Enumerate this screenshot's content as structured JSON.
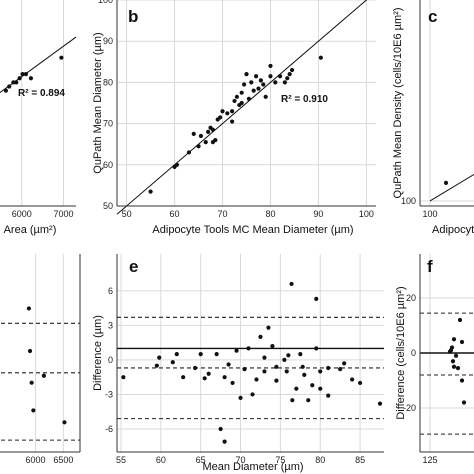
{
  "chart_data": [
    {
      "id": "a",
      "type": "scatter",
      "xlabel": "Area (µm²)",
      "ylabel": "",
      "xlim": [
        5000,
        7300
      ],
      "ylim": [
        50,
        100
      ],
      "xticks": [
        6000,
        7000
      ],
      "yticks": [],
      "annotation": "R² = 0.894",
      "points": [
        [
          5620,
          78
        ],
        [
          5700,
          79
        ],
        [
          5800,
          80
        ],
        [
          5870,
          80
        ],
        [
          5950,
          81
        ],
        [
          6020,
          82
        ],
        [
          6100,
          82
        ],
        [
          6220,
          81
        ],
        [
          6950,
          86
        ]
      ],
      "line": [
        [
          5000,
          74
        ],
        [
          7300,
          91
        ]
      ]
    },
    {
      "id": "b",
      "type": "scatter",
      "panel_label": "b",
      "xlabel": "Adipocyte Tools MC Mean Diameter (µm)",
      "ylabel": "QuPath Mean Diameter (µm)",
      "xlim": [
        48,
        102
      ],
      "ylim": [
        50,
        100
      ],
      "xticks": [
        50,
        60,
        70,
        80,
        90,
        100
      ],
      "yticks": [
        50,
        60,
        70,
        80,
        90,
        100
      ],
      "annotation": "R² = 0.910",
      "points": [
        [
          55,
          53.5
        ],
        [
          60,
          59.5
        ],
        [
          60.5,
          60
        ],
        [
          63,
          63
        ],
        [
          64,
          67.5
        ],
        [
          65,
          64.5
        ],
        [
          65.5,
          67
        ],
        [
          66.5,
          65.5
        ],
        [
          67,
          68
        ],
        [
          67.5,
          69
        ],
        [
          68,
          65.5
        ],
        [
          68,
          68.5
        ],
        [
          68.5,
          66
        ],
        [
          69,
          71
        ],
        [
          69.5,
          71.5
        ],
        [
          70,
          73
        ],
        [
          71,
          72.5
        ],
        [
          72,
          70.5
        ],
        [
          72,
          73
        ],
        [
          72.5,
          75.5
        ],
        [
          73,
          76.5
        ],
        [
          73.5,
          74.5
        ],
        [
          74,
          75
        ],
        [
          74,
          77.5
        ],
        [
          74.5,
          79.5
        ],
        [
          75,
          82
        ],
        [
          75.5,
          76
        ],
        [
          76,
          80
        ],
        [
          76.5,
          78
        ],
        [
          77,
          81.5
        ],
        [
          77.5,
          78.5
        ],
        [
          78,
          80.5
        ],
        [
          78.5,
          79.5
        ],
        [
          79,
          76.5
        ],
        [
          80,
          84
        ],
        [
          80,
          81.5
        ],
        [
          81,
          80
        ],
        [
          82,
          81.5
        ],
        [
          83,
          80
        ],
        [
          83.5,
          81
        ],
        [
          84,
          82
        ],
        [
          84.5,
          83
        ],
        [
          90.5,
          86
        ]
      ],
      "line": [
        [
          48,
          48
        ],
        [
          101,
          101
        ]
      ]
    },
    {
      "id": "c",
      "type": "scatter",
      "panel_label": "c",
      "xlabel": "Adipocyt",
      "ylabel": "QuPath Mean Density (cells/10E6 µm²)",
      "xlim": [
        90,
        150
      ],
      "ylim": [
        95,
        300
      ],
      "xticks": [
        100
      ],
      "yticks": [
        100
      ],
      "points": [
        [
          116,
          118
        ]
      ],
      "line": [
        [
          100,
          100
        ],
        [
          150,
          130
        ]
      ]
    },
    {
      "id": "d",
      "type": "scatter",
      "xlabel": "",
      "ylabel": "",
      "xlim": [
        5000,
        6800
      ],
      "ylim": [
        -500,
        500
      ],
      "xticks": [
        6000,
        6500
      ],
      "yticks": [],
      "points": [
        [
          5880,
          225
        ],
        [
          5900,
          10
        ],
        [
          5930,
          -150
        ],
        [
          5960,
          -290
        ],
        [
          6150,
          -115
        ],
        [
          6520,
          -350
        ]
      ],
      "hlines_solid": [],
      "hlines_dashed": [
        150,
        -100,
        -440
      ]
    },
    {
      "id": "e",
      "type": "scatter",
      "panel_label": "e",
      "xlabel": "Mean Diameter (µm)",
      "ylabel": "Difference (µm)",
      "xlim": [
        54.5,
        88
      ],
      "ylim": [
        -8,
        9.2
      ],
      "xticks": [
        55,
        60,
        65,
        70,
        75,
        80,
        85
      ],
      "xtick_labels": [
        "55",
        "60",
        "65",
        "70",
        "75",
        "80",
        "85"
      ],
      "yticks": [
        6,
        3,
        0,
        -3,
        -6
      ],
      "ytick_labels": [
        "6",
        "3",
        "0",
        "-3",
        "-6"
      ],
      "points": [
        [
          55.3,
          -1.5
        ],
        [
          59.5,
          -0.5
        ],
        [
          59.8,
          0.2
        ],
        [
          61.5,
          -0.2
        ],
        [
          62,
          0.5
        ],
        [
          62.8,
          -1.5
        ],
        [
          64.3,
          -0.7
        ],
        [
          65,
          0.5
        ],
        [
          65.5,
          -1.6
        ],
        [
          66,
          -1.2
        ],
        [
          67,
          0.5
        ],
        [
          68,
          -1.5
        ],
        [
          68.5,
          -0.4
        ],
        [
          69,
          -2
        ],
        [
          69.5,
          0.8
        ],
        [
          70,
          -3.3
        ],
        [
          70.5,
          -0.8
        ],
        [
          71,
          1
        ],
        [
          71.5,
          -3
        ],
        [
          72,
          -1.7
        ],
        [
          72.5,
          2
        ],
        [
          73,
          -1
        ],
        [
          73,
          0.2
        ],
        [
          73.5,
          2.8
        ],
        [
          74,
          1.2
        ],
        [
          74.5,
          -0.6
        ],
        [
          74.5,
          -1.8
        ],
        [
          75.5,
          0
        ],
        [
          75.8,
          -1
        ],
        [
          76,
          0.4
        ],
        [
          76.4,
          6.6
        ],
        [
          76.5,
          -3.5
        ],
        [
          77,
          -2.5
        ],
        [
          77.5,
          0.5
        ],
        [
          77.8,
          -0.6
        ],
        [
          78,
          -1.3
        ],
        [
          78.5,
          -3.5
        ],
        [
          79,
          -2.2
        ],
        [
          79.5,
          5.3
        ],
        [
          79.5,
          1
        ],
        [
          80,
          -1
        ],
        [
          80,
          -2.5
        ],
        [
          81,
          -0.7
        ],
        [
          81,
          -3.1
        ],
        [
          82.5,
          -0.8
        ],
        [
          83,
          -0.3
        ],
        [
          84,
          -1.7
        ],
        [
          85,
          -2
        ],
        [
          87.5,
          -3.8
        ],
        [
          67.5,
          -6
        ],
        [
          68,
          -7.1
        ]
      ],
      "hlines_solid": [
        1
      ],
      "hlines_dashed": [
        3.7,
        -0.7,
        -5.1
      ]
    },
    {
      "id": "f",
      "type": "scatter",
      "panel_label": "f",
      "xlabel": "",
      "ylabel": "Difference (cells/10E6 µm²)",
      "xlim": [
        120,
        150
      ],
      "ylim": [
        -36,
        36
      ],
      "xticks": [
        125
      ],
      "yticks": [
        20,
        0,
        -20
      ],
      "ytick_labels": [
        "20",
        "0",
        "-20"
      ],
      "points": [
        [
          135,
          0.5
        ],
        [
          135.5,
          1
        ],
        [
          136,
          2
        ],
        [
          136.5,
          -3
        ],
        [
          137,
          5
        ],
        [
          137,
          -5
        ],
        [
          138,
          -1
        ],
        [
          139,
          -5.5
        ],
        [
          140,
          12
        ],
        [
          141,
          4
        ],
        [
          141,
          -10
        ],
        [
          142,
          -18
        ]
      ],
      "hlines_solid": [
        0
      ],
      "hlines_dashed": [
        14.5,
        -8,
        -29.5
      ]
    }
  ]
}
